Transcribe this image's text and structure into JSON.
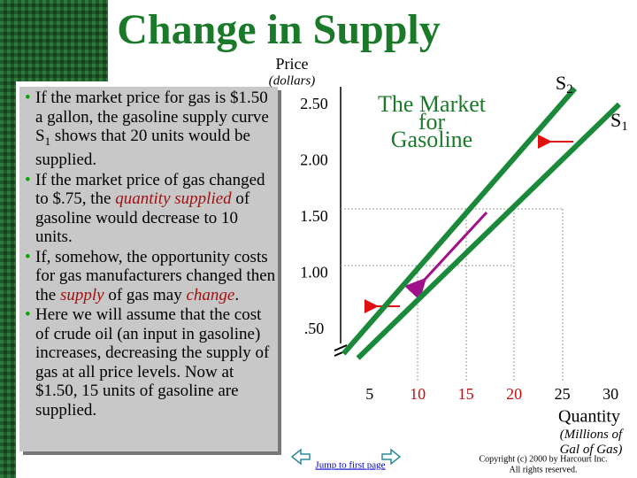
{
  "header": {
    "title": "Change in Supply"
  },
  "bullets": [
    [
      "If the market price for gas is $1.50 a gallon, the gasoline supply curve S",
      "1",
      " shows that 20 units would be supplied."
    ],
    [
      "If the market price of gas changed to $.75, the ",
      "quantity supplied",
      " of gasoline would decrease to 10 units."
    ],
    [
      "If, somehow, the opportunity costs for gas manufacturers changed then the ",
      "supply",
      " of gas may ",
      "change",
      "."
    ],
    [
      "Here we will assume that the cost of crude oil (an input in gasoline) increases, decreasing the supply of gas at all price levels.  Now at $1.50, 15 units of gasoline are supplied."
    ]
  ],
  "chart_data": {
    "type": "line",
    "title": "The Market for Gasoline",
    "y_label": "Price",
    "y_sublabel": "(dollars)",
    "x_label": "Quantity",
    "x_sublabel": "(Millions of Gal of Gas)",
    "xlim": [
      2,
      31
    ],
    "ylim": [
      0.05,
      2.65
    ],
    "xticks": [
      5,
      10,
      15,
      20,
      25,
      30
    ],
    "yticks": [
      {
        "value": 0.5,
        "label": ".50"
      },
      {
        "value": 1,
        "label": "1.00"
      },
      {
        "value": 1.5,
        "label": "1.50"
      },
      {
        "value": 2,
        "label": "2.00"
      },
      {
        "value": 2.5,
        "label": "2.50"
      }
    ],
    "series": [
      {
        "name": "S2",
        "color": "#1a8a3a",
        "x": [
          2.3,
          26.3
        ],
        "values": [
          0.29,
          2.65
        ]
      },
      {
        "name": "S1",
        "color": "#1a8a3a",
        "x": [
          3.8,
          30.9
        ],
        "values": [
          0.25,
          2.51
        ]
      }
    ]
  },
  "footer": {
    "nav": "Jump to first page",
    "copyright": [
      "Copyright (c) 2000 by Harcourt Inc.",
      "All rights reserved."
    ]
  }
}
